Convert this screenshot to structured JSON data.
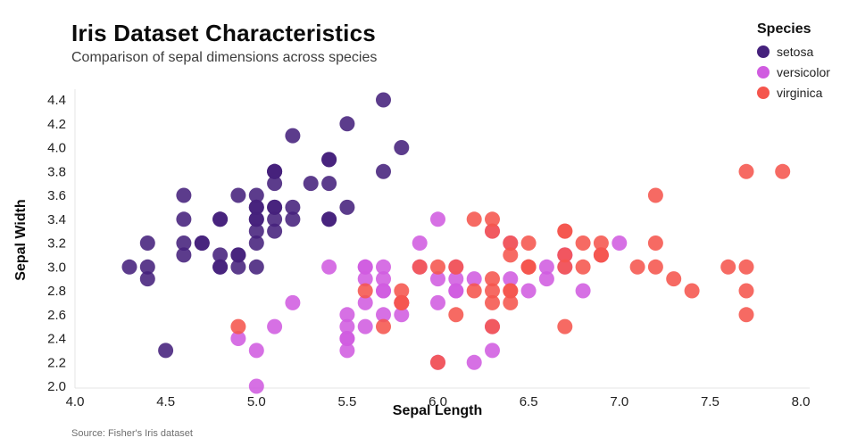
{
  "header": {
    "title": "Iris Dataset Characteristics",
    "subtitle": "Comparison of sepal dimensions across species"
  },
  "legend": {
    "title": "Species",
    "items": [
      {
        "label": "setosa",
        "color": "#45217c"
      },
      {
        "label": "versicolor",
        "color": "#d05ce0"
      },
      {
        "label": "virginica",
        "color": "#f5554d"
      }
    ]
  },
  "footer": {
    "source": "Source: Fisher's Iris dataset"
  },
  "chart_data": {
    "type": "scatter",
    "title": "Iris Dataset Characteristics",
    "subtitle": "Comparison of sepal dimensions across species",
    "xlabel": "Sepal Length",
    "ylabel": "Sepal Width",
    "xlim": [
      4.0,
      8.0
    ],
    "ylim": [
      2.0,
      4.4
    ],
    "xticks": [
      4.0,
      4.5,
      5.0,
      5.5,
      6.0,
      6.5,
      7.0,
      7.5,
      8.0
    ],
    "yticks": [
      2.0,
      2.2,
      2.4,
      2.6,
      2.8,
      3.0,
      3.2,
      3.4,
      3.6,
      3.8,
      4.0,
      4.2,
      4.4
    ],
    "grid": false,
    "legend_position": "top-right",
    "marker_radius": 8.5,
    "marker_opacity": 0.88,
    "series": [
      {
        "name": "setosa",
        "color": "#45217c",
        "points": [
          [
            5.1,
            3.5
          ],
          [
            4.9,
            3.0
          ],
          [
            4.7,
            3.2
          ],
          [
            4.6,
            3.1
          ],
          [
            5.0,
            3.6
          ],
          [
            5.4,
            3.9
          ],
          [
            4.6,
            3.4
          ],
          [
            5.0,
            3.4
          ],
          [
            4.4,
            2.9
          ],
          [
            4.9,
            3.1
          ],
          [
            5.4,
            3.7
          ],
          [
            4.8,
            3.4
          ],
          [
            4.8,
            3.0
          ],
          [
            4.3,
            3.0
          ],
          [
            5.8,
            4.0
          ],
          [
            5.7,
            4.4
          ],
          [
            5.4,
            3.9
          ],
          [
            5.1,
            3.5
          ],
          [
            5.7,
            3.8
          ],
          [
            5.1,
            3.8
          ],
          [
            5.4,
            3.4
          ],
          [
            5.1,
            3.7
          ],
          [
            4.6,
            3.6
          ],
          [
            5.1,
            3.3
          ],
          [
            4.8,
            3.4
          ],
          [
            5.0,
            3.0
          ],
          [
            5.0,
            3.4
          ],
          [
            5.2,
            3.5
          ],
          [
            5.2,
            3.4
          ],
          [
            4.7,
            3.2
          ],
          [
            4.8,
            3.1
          ],
          [
            5.4,
            3.4
          ],
          [
            5.2,
            4.1
          ],
          [
            5.5,
            4.2
          ],
          [
            4.9,
            3.1
          ],
          [
            5.0,
            3.2
          ],
          [
            5.5,
            3.5
          ],
          [
            4.9,
            3.6
          ],
          [
            4.4,
            3.0
          ],
          [
            5.1,
            3.4
          ],
          [
            5.0,
            3.5
          ],
          [
            4.5,
            2.3
          ],
          [
            4.4,
            3.2
          ],
          [
            5.0,
            3.5
          ],
          [
            5.1,
            3.8
          ],
          [
            4.8,
            3.0
          ],
          [
            5.1,
            3.8
          ],
          [
            4.6,
            3.2
          ],
          [
            5.3,
            3.7
          ],
          [
            5.0,
            3.3
          ]
        ]
      },
      {
        "name": "versicolor",
        "color": "#d05ce0",
        "points": [
          [
            7.0,
            3.2
          ],
          [
            6.4,
            3.2
          ],
          [
            6.9,
            3.1
          ],
          [
            5.5,
            2.3
          ],
          [
            6.5,
            2.8
          ],
          [
            5.7,
            2.8
          ],
          [
            6.3,
            3.3
          ],
          [
            4.9,
            2.4
          ],
          [
            6.6,
            2.9
          ],
          [
            5.2,
            2.7
          ],
          [
            5.0,
            2.0
          ],
          [
            5.9,
            3.0
          ],
          [
            6.0,
            2.2
          ],
          [
            6.1,
            2.9
          ],
          [
            5.6,
            2.9
          ],
          [
            6.7,
            3.1
          ],
          [
            5.6,
            3.0
          ],
          [
            5.8,
            2.7
          ],
          [
            6.2,
            2.2
          ],
          [
            5.6,
            2.5
          ],
          [
            5.9,
            3.2
          ],
          [
            6.1,
            2.8
          ],
          [
            6.3,
            2.5
          ],
          [
            6.1,
            2.8
          ],
          [
            6.4,
            2.9
          ],
          [
            6.6,
            3.0
          ],
          [
            6.8,
            2.8
          ],
          [
            6.7,
            3.0
          ],
          [
            6.0,
            2.9
          ],
          [
            5.7,
            2.6
          ],
          [
            5.5,
            2.4
          ],
          [
            5.5,
            2.4
          ],
          [
            5.8,
            2.7
          ],
          [
            6.0,
            2.7
          ],
          [
            5.4,
            3.0
          ],
          [
            6.0,
            3.4
          ],
          [
            6.7,
            3.1
          ],
          [
            6.3,
            2.3
          ],
          [
            5.6,
            3.0
          ],
          [
            5.5,
            2.5
          ],
          [
            5.5,
            2.6
          ],
          [
            6.1,
            3.0
          ],
          [
            5.8,
            2.6
          ],
          [
            5.0,
            2.3
          ],
          [
            5.6,
            2.7
          ],
          [
            5.7,
            3.0
          ],
          [
            5.7,
            2.9
          ],
          [
            6.2,
            2.9
          ],
          [
            5.1,
            2.5
          ],
          [
            5.7,
            2.8
          ]
        ]
      },
      {
        "name": "virginica",
        "color": "#f5554d",
        "points": [
          [
            6.3,
            3.3
          ],
          [
            5.8,
            2.7
          ],
          [
            7.1,
            3.0
          ],
          [
            6.3,
            2.9
          ],
          [
            6.5,
            3.0
          ],
          [
            7.6,
            3.0
          ],
          [
            4.9,
            2.5
          ],
          [
            7.3,
            2.9
          ],
          [
            6.7,
            2.5
          ],
          [
            7.2,
            3.6
          ],
          [
            6.5,
            3.2
          ],
          [
            6.4,
            2.7
          ],
          [
            6.8,
            3.0
          ],
          [
            5.7,
            2.5
          ],
          [
            5.8,
            2.8
          ],
          [
            6.4,
            3.2
          ],
          [
            6.5,
            3.0
          ],
          [
            7.7,
            3.8
          ],
          [
            7.7,
            2.6
          ],
          [
            6.0,
            2.2
          ],
          [
            6.9,
            3.2
          ],
          [
            5.6,
            2.8
          ],
          [
            7.7,
            2.8
          ],
          [
            6.3,
            2.7
          ],
          [
            6.7,
            3.3
          ],
          [
            7.2,
            3.2
          ],
          [
            6.2,
            2.8
          ],
          [
            6.1,
            3.0
          ],
          [
            6.4,
            2.8
          ],
          [
            7.2,
            3.0
          ],
          [
            7.4,
            2.8
          ],
          [
            7.9,
            3.8
          ],
          [
            6.4,
            2.8
          ],
          [
            6.3,
            2.8
          ],
          [
            6.1,
            2.6
          ],
          [
            7.7,
            3.0
          ],
          [
            6.3,
            3.4
          ],
          [
            6.4,
            3.1
          ],
          [
            6.0,
            3.0
          ],
          [
            6.9,
            3.1
          ],
          [
            6.7,
            3.1
          ],
          [
            6.9,
            3.1
          ],
          [
            5.8,
            2.7
          ],
          [
            6.8,
            3.2
          ],
          [
            6.7,
            3.3
          ],
          [
            6.7,
            3.0
          ],
          [
            6.3,
            2.5
          ],
          [
            6.5,
            3.0
          ],
          [
            6.2,
            3.4
          ],
          [
            5.9,
            3.0
          ]
        ]
      }
    ]
  }
}
